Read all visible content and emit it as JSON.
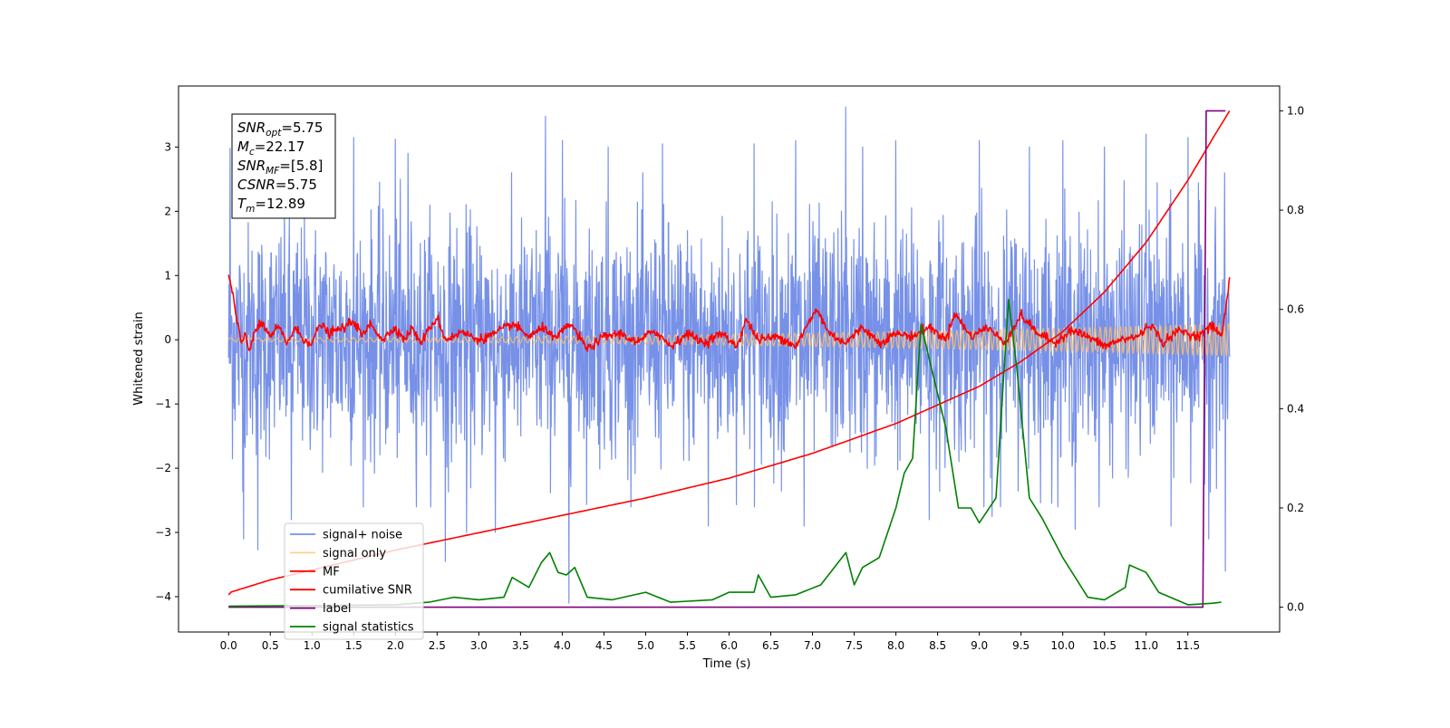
{
  "chart_data": {
    "type": "line",
    "xlabel": "Time (s)",
    "ylabel": "Whitened strain",
    "xlim": [
      -0.6,
      12.6
    ],
    "ylim": [
      -4.55,
      3.95
    ],
    "y2lim": [
      -0.05,
      1.05
    ],
    "x_ticks": [
      0.0,
      0.5,
      1.0,
      1.5,
      2.0,
      2.5,
      3.0,
      3.5,
      4.0,
      4.5,
      5.0,
      5.5,
      6.0,
      6.5,
      7.0,
      7.5,
      8.0,
      8.5,
      9.0,
      9.5,
      10.0,
      10.5,
      11.0,
      11.5
    ],
    "x_tick_labels": [
      "0.0",
      "0.5",
      "1.0",
      "1.5",
      "2.0",
      "2.5",
      "3.0",
      "3.5",
      "4.0",
      "4.5",
      "5.0",
      "5.5",
      "6.0",
      "6.5",
      "7.0",
      "7.5",
      "8.0",
      "8.5",
      "9.0",
      "9.5",
      "10.0",
      "10.5",
      "11.0",
      "11.5"
    ],
    "y_ticks": [
      3,
      2,
      1,
      0,
      -1,
      -2,
      -3,
      -4
    ],
    "y_tick_labels": [
      "3",
      "2",
      "1",
      "0",
      "−1",
      "−2",
      "−3",
      "−4"
    ],
    "y2_ticks": [
      1.0,
      0.8,
      0.6,
      0.4,
      0.2,
      0.0
    ],
    "y2_tick_labels": [
      "1.0",
      "0.8",
      "0.6",
      "0.4",
      "0.2",
      "0.0"
    ],
    "legend_placement": "lower-left",
    "annotation": {
      "lines": [
        {
          "base": "SNR",
          "sub": "opt",
          "value": "=5.75"
        },
        {
          "base": "M",
          "sub": "c",
          "value": "=22.17"
        },
        {
          "base": "SNR",
          "sub": "MF",
          "value": "=[5.8]"
        },
        {
          "base": "CSNR",
          "sub": "",
          "value": "=5.75"
        },
        {
          "base": "T",
          "sub": "m",
          "value": "=12.89"
        }
      ]
    },
    "series": [
      {
        "name": "signal+ noise",
        "color": "#6b88e6",
        "axis": "left",
        "style": "noise",
        "x_range": [
          0.0,
          12.0
        ],
        "amplitude": 1.0,
        "peaks": [
          [
            0.02,
            2.98
          ],
          [
            0.18,
            -3.1
          ],
          [
            0.35,
            -3.27
          ],
          [
            0.75,
            -2.8
          ],
          [
            1.5,
            3.15
          ],
          [
            2.0,
            3.12
          ],
          [
            2.15,
            2.9
          ],
          [
            2.6,
            -3.45
          ],
          [
            2.85,
            -3.0
          ],
          [
            3.2,
            -3.0
          ],
          [
            3.8,
            3.48
          ],
          [
            4.0,
            3.1
          ],
          [
            4.08,
            -4.1
          ],
          [
            4.55,
            3.0
          ],
          [
            5.2,
            3.05
          ],
          [
            5.75,
            -2.9
          ],
          [
            6.3,
            3.05
          ],
          [
            6.8,
            3.1
          ],
          [
            6.9,
            -2.9
          ],
          [
            7.4,
            3.62
          ],
          [
            7.6,
            3.0
          ],
          [
            8.0,
            3.1
          ],
          [
            8.4,
            -2.8
          ],
          [
            9.0,
            3.1
          ],
          [
            9.15,
            -2.75
          ],
          [
            9.6,
            3.0
          ],
          [
            10.0,
            3.1
          ],
          [
            10.15,
            -2.95
          ],
          [
            10.5,
            3.0
          ],
          [
            11.0,
            3.2
          ],
          [
            11.3,
            -2.9
          ],
          [
            11.5,
            3.15
          ],
          [
            11.75,
            -3.1
          ],
          [
            11.95,
            -3.6
          ]
        ]
      },
      {
        "name": "signal only",
        "color": "#ffbf66",
        "axis": "left",
        "style": "chirp",
        "x_range": [
          0.0,
          12.0
        ],
        "amp_start": 0.03,
        "amp_end": 0.25
      },
      {
        "name": "MF",
        "color": "#ff0000",
        "axis": "left",
        "style": "matched_filter",
        "x_range": [
          0.0,
          12.0
        ],
        "points": [
          [
            0.0,
            0.98
          ],
          [
            0.05,
            0.72
          ],
          [
            0.1,
            0.28
          ],
          [
            0.15,
            -0.05
          ],
          [
            0.2,
            0.08
          ],
          [
            0.25,
            -0.18
          ],
          [
            0.3,
            0.1
          ],
          [
            0.4,
            0.25
          ],
          [
            0.5,
            0.05
          ],
          [
            0.6,
            0.2
          ],
          [
            0.7,
            -0.05
          ],
          [
            0.8,
            0.18
          ],
          [
            0.9,
            0.0
          ],
          [
            1.0,
            -0.05
          ],
          [
            1.1,
            0.25
          ],
          [
            1.2,
            0.1
          ],
          [
            1.4,
            0.2
          ],
          [
            1.5,
            0.3
          ],
          [
            1.6,
            0.05
          ],
          [
            1.7,
            0.25
          ],
          [
            1.85,
            0.0
          ],
          [
            2.0,
            0.2
          ],
          [
            2.1,
            0.0
          ],
          [
            2.2,
            0.18
          ],
          [
            2.3,
            -0.05
          ],
          [
            2.5,
            0.35
          ],
          [
            2.6,
            0.0
          ],
          [
            2.8,
            0.12
          ],
          [
            3.0,
            0.0
          ],
          [
            3.2,
            0.1
          ],
          [
            3.4,
            0.25
          ],
          [
            3.6,
            0.05
          ],
          [
            3.8,
            0.2
          ],
          [
            3.9,
            0.0
          ],
          [
            4.1,
            0.25
          ],
          [
            4.3,
            -0.15
          ],
          [
            4.5,
            0.05
          ],
          [
            4.7,
            0.1
          ],
          [
            4.9,
            -0.05
          ],
          [
            5.1,
            0.15
          ],
          [
            5.3,
            -0.1
          ],
          [
            5.5,
            0.1
          ],
          [
            5.7,
            -0.05
          ],
          [
            5.9,
            0.1
          ],
          [
            6.1,
            -0.1
          ],
          [
            6.2,
            0.32
          ],
          [
            6.35,
            0.0
          ],
          [
            6.6,
            0.05
          ],
          [
            6.8,
            -0.1
          ],
          [
            7.05,
            0.48
          ],
          [
            7.2,
            0.1
          ],
          [
            7.4,
            -0.05
          ],
          [
            7.6,
            0.2
          ],
          [
            7.8,
            -0.05
          ],
          [
            8.0,
            0.1
          ],
          [
            8.2,
            0.05
          ],
          [
            8.4,
            0.2
          ],
          [
            8.6,
            0.0
          ],
          [
            8.7,
            0.42
          ],
          [
            8.9,
            0.05
          ],
          [
            9.1,
            0.2
          ],
          [
            9.3,
            -0.05
          ],
          [
            9.5,
            0.38
          ],
          [
            9.7,
            0.1
          ],
          [
            9.9,
            -0.05
          ],
          [
            10.1,
            0.15
          ],
          [
            10.3,
            0.05
          ],
          [
            10.5,
            -0.1
          ],
          [
            10.7,
            0.0
          ],
          [
            10.9,
            0.05
          ],
          [
            11.05,
            0.25
          ],
          [
            11.2,
            -0.05
          ],
          [
            11.4,
            0.15
          ],
          [
            11.6,
            0.05
          ],
          [
            11.8,
            0.22
          ],
          [
            11.9,
            0.05
          ],
          [
            11.97,
            0.6
          ],
          [
            12.0,
            0.98
          ]
        ]
      },
      {
        "name": "cumilative SNR",
        "color": "#ff0000",
        "axis": "right",
        "style": "curve",
        "x_range": [
          0.0,
          12.0
        ],
        "points": [
          [
            0.0,
            0.025
          ],
          [
            0.02,
            0.03
          ],
          [
            0.5,
            0.055
          ],
          [
            1.0,
            0.075
          ],
          [
            2.0,
            0.115
          ],
          [
            3.0,
            0.15
          ],
          [
            4.0,
            0.185
          ],
          [
            5.0,
            0.22
          ],
          [
            6.0,
            0.26
          ],
          [
            7.0,
            0.31
          ],
          [
            8.0,
            0.37
          ],
          [
            9.0,
            0.445
          ],
          [
            9.5,
            0.495
          ],
          [
            10.0,
            0.555
          ],
          [
            10.5,
            0.635
          ],
          [
            11.0,
            0.735
          ],
          [
            11.5,
            0.86
          ],
          [
            11.8,
            0.945
          ],
          [
            12.0,
            1.0
          ]
        ]
      },
      {
        "name": "label",
        "color": "#800080",
        "axis": "right",
        "style": "step",
        "points": [
          [
            0.0,
            0.0
          ],
          [
            11.68,
            0.0
          ],
          [
            11.72,
            1.0
          ],
          [
            11.95,
            1.0
          ]
        ]
      },
      {
        "name": "signal statistics",
        "color": "#008000",
        "axis": "right",
        "style": "curve",
        "points": [
          [
            0.0,
            0.002
          ],
          [
            2.0,
            0.005
          ],
          [
            2.4,
            0.01
          ],
          [
            2.7,
            0.02
          ],
          [
            3.0,
            0.015
          ],
          [
            3.3,
            0.02
          ],
          [
            3.4,
            0.06
          ],
          [
            3.6,
            0.04
          ],
          [
            3.75,
            0.09
          ],
          [
            3.85,
            0.11
          ],
          [
            3.95,
            0.07
          ],
          [
            4.05,
            0.065
          ],
          [
            4.15,
            0.08
          ],
          [
            4.3,
            0.02
          ],
          [
            4.6,
            0.015
          ],
          [
            5.0,
            0.03
          ],
          [
            5.3,
            0.01
          ],
          [
            5.8,
            0.015
          ],
          [
            6.0,
            0.03
          ],
          [
            6.3,
            0.03
          ],
          [
            6.35,
            0.065
          ],
          [
            6.5,
            0.02
          ],
          [
            6.8,
            0.025
          ],
          [
            7.1,
            0.045
          ],
          [
            7.4,
            0.11
          ],
          [
            7.5,
            0.045
          ],
          [
            7.6,
            0.08
          ],
          [
            7.8,
            0.1
          ],
          [
            8.0,
            0.2
          ],
          [
            8.1,
            0.27
          ],
          [
            8.2,
            0.3
          ],
          [
            8.3,
            0.57
          ],
          [
            8.4,
            0.5
          ],
          [
            8.6,
            0.36
          ],
          [
            8.75,
            0.2
          ],
          [
            8.9,
            0.2
          ],
          [
            9.0,
            0.17
          ],
          [
            9.2,
            0.22
          ],
          [
            9.35,
            0.62
          ],
          [
            9.45,
            0.48
          ],
          [
            9.6,
            0.22
          ],
          [
            9.75,
            0.18
          ],
          [
            10.0,
            0.1
          ],
          [
            10.3,
            0.02
          ],
          [
            10.5,
            0.015
          ],
          [
            10.75,
            0.04
          ],
          [
            10.8,
            0.085
          ],
          [
            11.0,
            0.07
          ],
          [
            11.15,
            0.03
          ],
          [
            11.5,
            0.005
          ],
          [
            11.8,
            0.008
          ],
          [
            11.9,
            0.01
          ]
        ]
      }
    ]
  }
}
